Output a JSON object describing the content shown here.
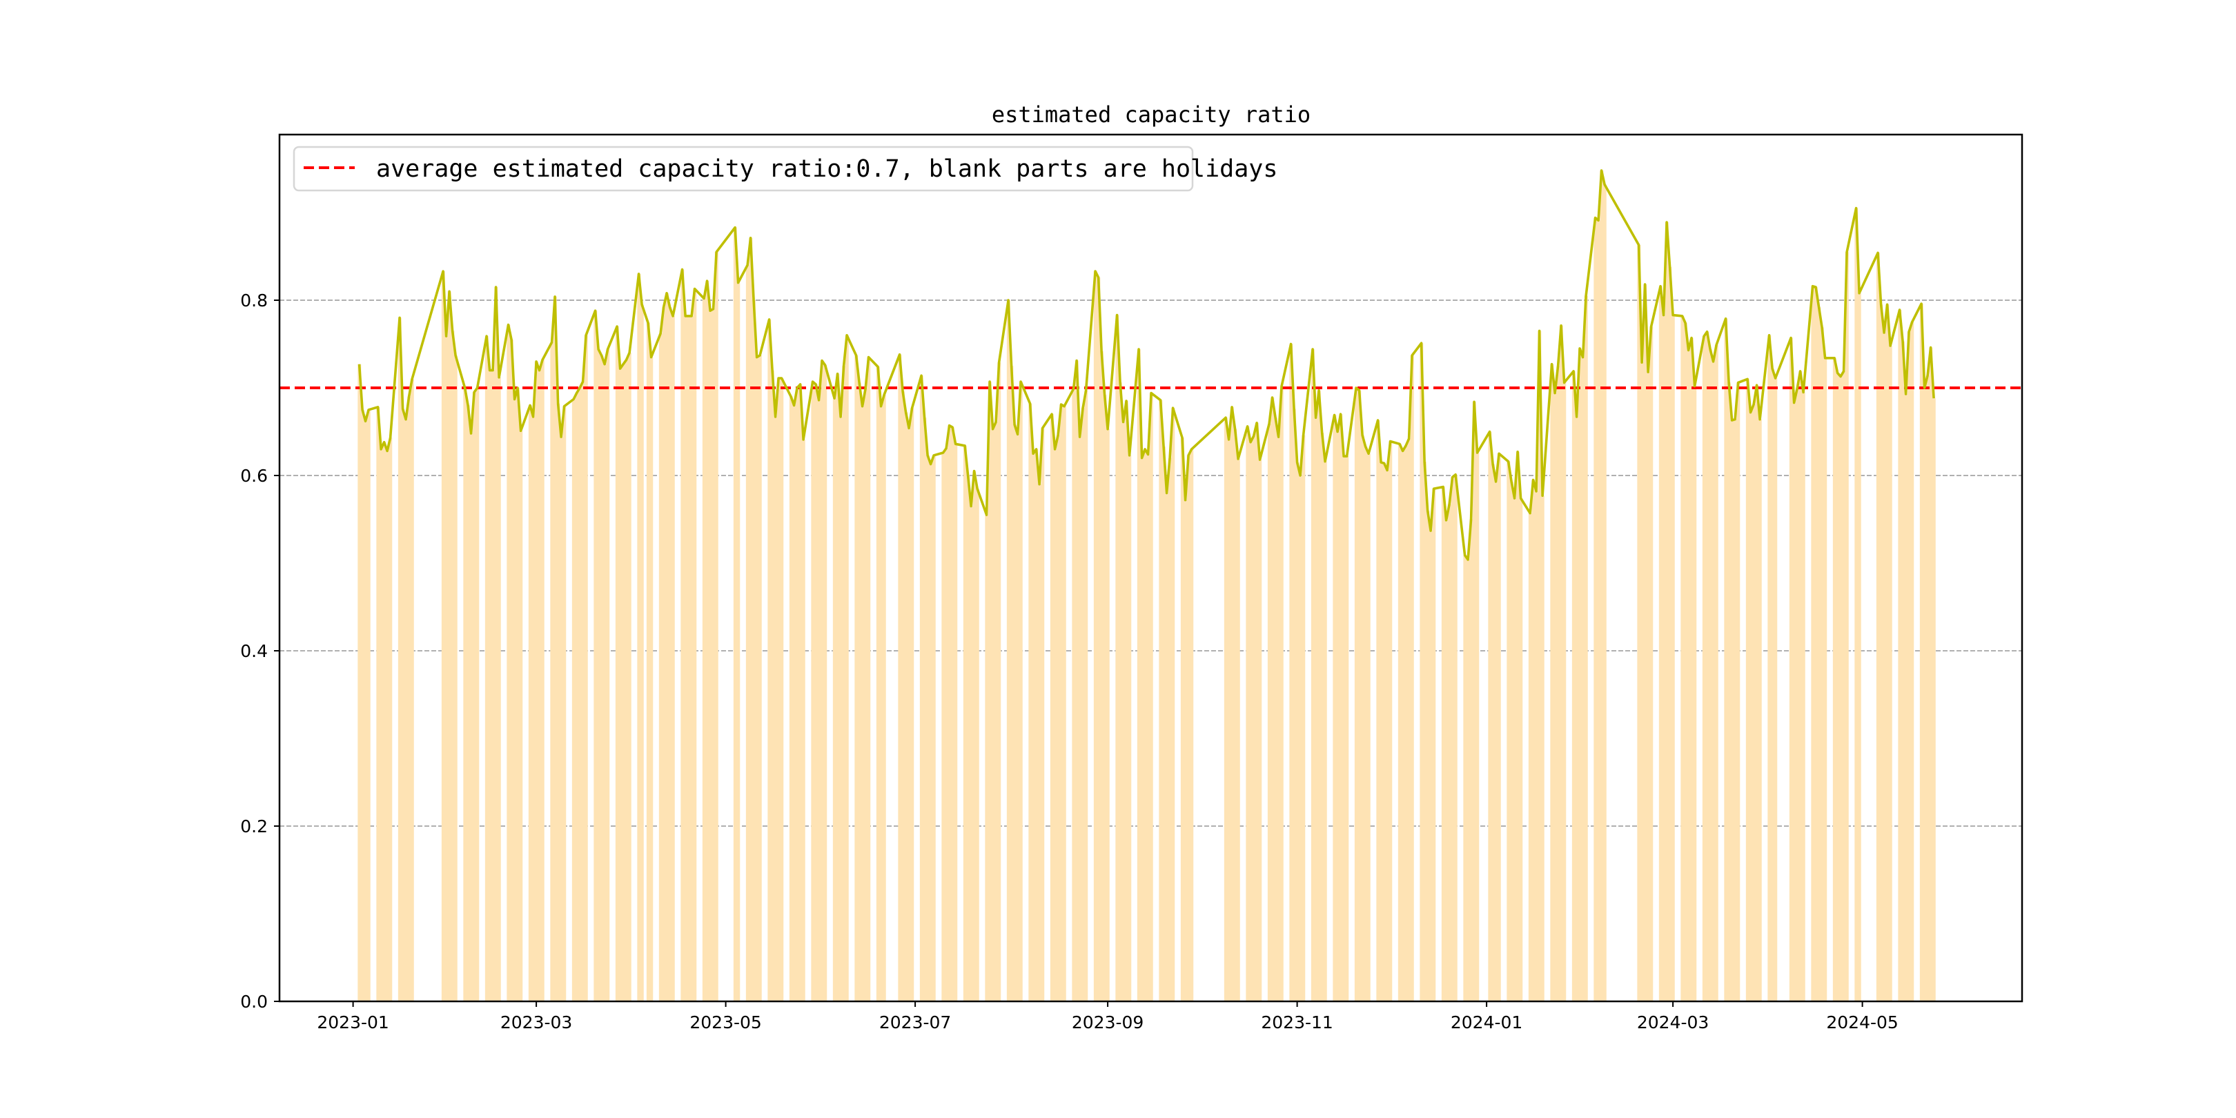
{
  "chart_data": {
    "type": "bar+line",
    "title": "estimated capacity ratio",
    "xlabel": "",
    "ylabel": "",
    "ylim": [
      0,
      0.99
    ],
    "xlim": [
      "2022-12-08",
      "2024-06-23"
    ],
    "yticks": [
      "0.0",
      "0.2",
      "0.4",
      "0.6",
      "0.8"
    ],
    "ytick_values": [
      0,
      0.2,
      0.4,
      0.6,
      0.8
    ],
    "xticks": [
      "2023-01",
      "2023-03",
      "2023-05",
      "2023-07",
      "2023-09",
      "2023-11",
      "2024-01",
      "2024-03",
      "2024-05"
    ],
    "grid": "y-dashed",
    "average": 0.7,
    "legend": {
      "placement": "top-left",
      "entries": [
        "average estimated capacity ratio:0.7, blank parts are holidays"
      ]
    },
    "colors": {
      "bars": "#fee3b4",
      "line": "#bfbf00",
      "average": "#ff0000",
      "grid": "#b0b0b0"
    },
    "series": [
      {
        "start": "2023-01-03",
        "values": [
          0.727,
          0.675,
          0.662,
          0.675
        ]
      },
      {
        "start": "2023-01-09",
        "values": [
          0.678,
          0.63,
          0.638,
          0.628,
          0.643
        ]
      },
      {
        "start": "2023-01-16",
        "values": [
          0.78,
          0.676,
          0.664,
          0.69,
          0.71
        ]
      },
      {
        "start": "2023-01-30",
        "values": [
          0.833,
          0.759,
          0.81,
          0.765,
          0.737
        ]
      },
      {
        "start": "2023-02-06",
        "values": [
          0.7,
          0.68,
          0.648,
          0.695,
          0.7
        ]
      },
      {
        "start": "2023-02-13",
        "values": [
          0.759,
          0.72,
          0.72,
          0.815,
          0.712
        ]
      },
      {
        "start": "2023-02-20",
        "values": [
          0.772,
          0.755,
          0.687,
          0.7,
          0.651
        ]
      },
      {
        "start": "2023-02-27",
        "values": [
          0.68,
          0.667,
          0.73,
          0.72,
          0.732
        ]
      },
      {
        "start": "2023-03-06",
        "values": [
          0.752,
          0.804,
          0.682,
          0.644,
          0.679
        ]
      },
      {
        "start": "2023-03-13",
        "values": [
          0.687,
          0.694,
          0.7,
          0.707,
          0.76
        ]
      },
      {
        "start": "2023-03-20",
        "values": [
          0.788,
          0.744,
          0.737,
          0.727,
          0.744
        ]
      },
      {
        "start": "2023-03-27",
        "values": [
          0.77,
          0.722,
          0.727,
          0.732,
          0.74
        ]
      },
      {
        "start": "2023-04-03",
        "values": [
          0.83,
          0.795
        ]
      },
      {
        "start": "2023-04-06",
        "values": [
          0.774,
          0.735
        ]
      },
      {
        "start": "2023-04-10",
        "values": [
          0.762,
          0.792,
          0.808,
          0.792,
          0.782
        ]
      },
      {
        "start": "2023-04-17",
        "values": [
          0.835,
          0.782,
          0.782,
          0.782,
          0.813
        ]
      },
      {
        "start": "2023-04-24",
        "values": [
          0.802,
          0.822,
          0.788,
          0.79,
          0.855
        ]
      },
      {
        "start": "2023-05-04",
        "values": [
          0.883,
          0.82
        ]
      },
      {
        "start": "2023-05-08",
        "values": [
          0.84,
          0.871,
          0.8,
          0.735,
          0.737
        ]
      },
      {
        "start": "2023-05-15",
        "values": [
          0.778,
          0.72,
          0.667,
          0.711,
          0.711
        ]
      },
      {
        "start": "2023-05-22",
        "values": [
          0.69,
          0.68,
          0.7,
          0.704,
          0.641
        ]
      },
      {
        "start": "2023-05-29",
        "values": [
          0.707,
          0.704,
          0.686,
          0.731,
          0.726
        ]
      },
      {
        "start": "2023-06-05",
        "values": [
          0.688,
          0.716,
          0.667,
          0.725,
          0.76
        ]
      },
      {
        "start": "2023-06-12",
        "values": [
          0.737,
          0.706,
          0.679,
          0.699,
          0.735
        ]
      },
      {
        "start": "2023-06-19",
        "values": [
          0.724,
          0.679,
          0.692
        ]
      },
      {
        "start": "2023-06-26",
        "values": [
          0.738,
          0.696,
          0.672,
          0.654,
          0.677
        ]
      },
      {
        "start": "2023-07-03",
        "values": [
          0.714,
          0.666,
          0.623,
          0.613,
          0.623
        ]
      },
      {
        "start": "2023-07-10",
        "values": [
          0.626,
          0.631,
          0.657,
          0.655,
          0.636
        ]
      },
      {
        "start": "2023-07-17",
        "values": [
          0.634,
          0.6,
          0.565,
          0.605,
          0.585
        ]
      },
      {
        "start": "2023-07-24",
        "values": [
          0.555,
          0.707,
          0.653,
          0.661,
          0.729
        ]
      },
      {
        "start": "2023-07-31",
        "values": [
          0.8,
          0.725,
          0.658,
          0.647,
          0.707
        ]
      },
      {
        "start": "2023-08-07",
        "values": [
          0.682,
          0.625,
          0.63,
          0.59,
          0.654
        ]
      },
      {
        "start": "2023-08-14",
        "values": [
          0.67,
          0.63,
          0.646,
          0.681,
          0.679
        ]
      },
      {
        "start": "2023-08-21",
        "values": [
          0.699,
          0.731,
          0.644,
          0.677,
          0.697
        ]
      },
      {
        "start": "2023-08-28",
        "values": [
          0.833,
          0.826,
          0.742,
          0.692,
          0.653
        ]
      },
      {
        "start": "2023-09-04",
        "values": [
          0.783,
          0.706,
          0.661,
          0.685,
          0.623
        ]
      },
      {
        "start": "2023-09-11",
        "values": [
          0.744,
          0.62,
          0.63,
          0.624,
          0.694
        ]
      },
      {
        "start": "2023-09-18",
        "values": [
          0.686,
          0.633,
          0.58,
          0.62,
          0.677
        ]
      },
      {
        "start": "2023-09-25",
        "values": [
          0.643,
          0.572,
          0.623,
          0.63
        ]
      },
      {
        "start": "2023-10-09",
        "values": [
          0.666,
          0.641,
          0.678,
          0.653,
          0.619
        ]
      },
      {
        "start": "2023-10-16",
        "values": [
          0.656,
          0.638,
          0.645,
          0.66,
          0.618
        ]
      },
      {
        "start": "2023-10-23",
        "values": [
          0.659,
          0.689,
          0.666,
          0.644,
          0.702
        ]
      },
      {
        "start": "2023-10-30",
        "values": [
          0.75,
          0.676,
          0.615,
          0.6,
          0.646
        ]
      },
      {
        "start": "2023-11-06",
        "values": [
          0.744,
          0.666,
          0.697,
          0.649,
          0.616
        ]
      },
      {
        "start": "2023-11-13",
        "values": [
          0.669,
          0.65,
          0.67,
          0.622,
          0.622
        ]
      },
      {
        "start": "2023-11-20",
        "values": [
          0.7,
          0.697,
          0.646,
          0.633,
          0.625
        ]
      },
      {
        "start": "2023-11-27",
        "values": [
          0.663,
          0.615,
          0.614,
          0.606,
          0.639
        ]
      },
      {
        "start": "2023-12-04",
        "values": [
          0.636,
          0.628,
          0.634,
          0.642,
          0.737
        ]
      },
      {
        "start": "2023-12-11",
        "values": [
          0.751,
          0.616,
          0.56,
          0.537,
          0.585
        ]
      },
      {
        "start": "2023-12-18",
        "values": [
          0.587,
          0.549,
          0.567,
          0.598,
          0.601
        ]
      },
      {
        "start": "2023-12-25",
        "values": [
          0.509,
          0.504,
          0.55,
          0.684,
          0.626
        ]
      },
      {
        "start": "2024-01-02",
        "values": [
          0.65,
          0.613,
          0.593,
          0.625
        ]
      },
      {
        "start": "2024-01-08",
        "values": [
          0.616,
          0.593,
          0.574,
          0.627,
          0.574
        ]
      },
      {
        "start": "2024-01-15",
        "values": [
          0.557,
          0.595,
          0.582,
          0.765,
          0.577
        ]
      },
      {
        "start": "2024-01-22",
        "values": [
          0.727,
          0.694,
          0.725,
          0.771,
          0.706
        ]
      },
      {
        "start": "2024-01-29",
        "values": [
          0.719,
          0.667,
          0.745,
          0.735,
          0.805
        ]
      },
      {
        "start": "2024-02-05",
        "values": [
          0.894,
          0.891,
          0.948,
          0.932
        ]
      },
      {
        "start": "2024-02-19",
        "values": [
          0.863,
          0.729,
          0.818,
          0.718,
          0.77
        ]
      },
      {
        "start": "2024-02-26",
        "values": [
          0.816,
          0.783,
          0.889,
          0.838,
          0.783
        ]
      },
      {
        "start": "2024-03-04",
        "values": [
          0.782,
          0.774,
          0.743,
          0.757,
          0.702
        ]
      },
      {
        "start": "2024-03-11",
        "values": [
          0.759,
          0.764,
          0.744,
          0.73,
          0.749
        ]
      },
      {
        "start": "2024-03-18",
        "values": [
          0.779,
          0.706,
          0.663,
          0.664,
          0.706
        ]
      },
      {
        "start": "2024-03-25",
        "values": [
          0.71,
          0.672,
          0.681,
          0.703,
          0.664
        ]
      },
      {
        "start": "2024-04-01",
        "values": [
          0.76,
          0.722,
          0.711
        ]
      },
      {
        "start": "2024-04-08",
        "values": [
          0.757,
          0.683,
          0.699,
          0.719,
          0.695
        ]
      },
      {
        "start": "2024-04-15",
        "values": [
          0.816,
          0.815,
          0.792,
          0.769,
          0.734
        ]
      },
      {
        "start": "2024-04-22",
        "values": [
          0.734,
          0.717,
          0.713,
          0.719,
          0.855
        ]
      },
      {
        "start": "2024-04-29",
        "values": [
          0.905,
          0.808
        ]
      },
      {
        "start": "2024-05-06",
        "values": [
          0.854,
          0.795,
          0.763,
          0.795,
          0.748
        ]
      },
      {
        "start": "2024-05-13",
        "values": [
          0.789,
          0.753,
          0.693,
          0.764,
          0.775
        ]
      },
      {
        "start": "2024-05-20",
        "values": [
          0.796,
          0.7,
          0.714,
          0.746,
          0.688
        ]
      }
    ]
  }
}
